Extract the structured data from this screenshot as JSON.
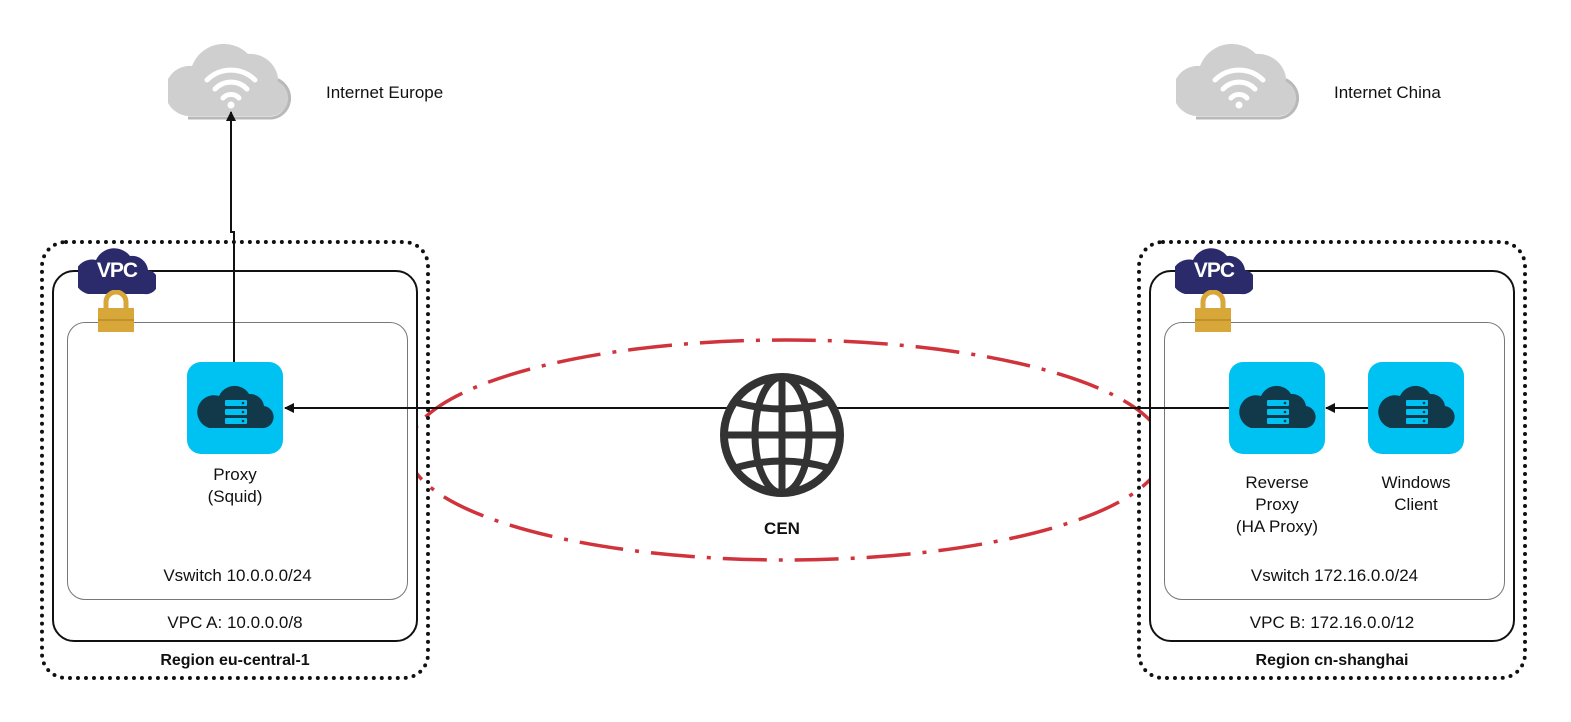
{
  "internet": {
    "europe_label": "Internet Europe",
    "china_label": "Internet China"
  },
  "left": {
    "region_label": "Region eu-central-1",
    "vpc_badge": "VPC",
    "vpc_label": "VPC A: 10.0.0.0/8",
    "vswitch_label": "Vswitch 10.0.0.0/24",
    "proxy": {
      "line1": "Proxy",
      "line2": "(Squid)"
    }
  },
  "right": {
    "region_label": "Region cn-shanghai",
    "vpc_badge": "VPC",
    "vpc_label": "VPC B: 172.16.0.0/12",
    "vswitch_label": "Vswitch 172.16.0.0/24",
    "reverse_proxy": {
      "line1": "Reverse",
      "line2": "Proxy",
      "line3": "(HA Proxy)"
    },
    "windows_client": {
      "line1": "Windows",
      "line2": "Client"
    }
  },
  "cen": {
    "label": "CEN"
  },
  "colors": {
    "server_fill": "#00c2f2",
    "server_dark": "#12394a",
    "vpc_badge": "#2b2a6b",
    "lock": "#d7a73a",
    "cen_ellipse": "#d0333b",
    "cloud": "#cfcfcf"
  },
  "icons": [
    "cloud-wifi-icon",
    "vpc-cloud-icon",
    "lock-icon",
    "server-cloud-icon",
    "globe-icon"
  ]
}
